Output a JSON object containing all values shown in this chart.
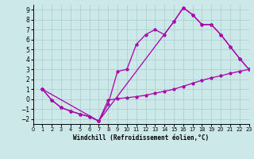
{
  "xlabel": "Windchill (Refroidissement éolien,°C)",
  "bg_color": "#cce8e8",
  "grid_color": "#aacccc",
  "line_color": "#aa00aa",
  "xlim": [
    0,
    23
  ],
  "ylim": [
    -2.5,
    9.5
  ],
  "xticks": [
    0,
    1,
    2,
    3,
    4,
    5,
    6,
    7,
    8,
    9,
    10,
    11,
    12,
    13,
    14,
    15,
    16,
    17,
    18,
    19,
    20,
    21,
    22,
    23
  ],
  "yticks": [
    -2,
    -1,
    0,
    1,
    2,
    3,
    4,
    5,
    6,
    7,
    8,
    9
  ],
  "line1_x": [
    1,
    2,
    3,
    4,
    5,
    6,
    7,
    8,
    9,
    10,
    11,
    12,
    13,
    14,
    15,
    16,
    17,
    18,
    19,
    20,
    21,
    22,
    23
  ],
  "line1_y": [
    1.0,
    -0.1,
    -0.85,
    -1.2,
    -1.5,
    -1.75,
    -2.2,
    -0.5,
    2.8,
    3.0,
    5.5,
    6.5,
    7.0,
    6.5,
    7.8,
    9.2,
    8.5,
    7.5,
    7.5,
    6.5,
    5.3,
    4.1,
    3.0
  ],
  "line2_x": [
    1,
    2,
    3,
    4,
    5,
    6,
    7,
    8,
    9,
    10,
    11,
    12,
    13,
    14,
    15,
    16,
    17,
    18,
    19,
    20,
    21,
    22,
    23
  ],
  "line2_y": [
    1.0,
    -0.1,
    -0.85,
    -1.2,
    -1.5,
    -1.75,
    -2.2,
    -0.1,
    0.05,
    0.15,
    0.25,
    0.4,
    0.6,
    0.8,
    1.0,
    1.3,
    1.6,
    1.9,
    2.15,
    2.35,
    2.6,
    2.8,
    3.0
  ],
  "line3_x": [
    1,
    7,
    15,
    16,
    17,
    18,
    19,
    20,
    21,
    22,
    23
  ],
  "line3_y": [
    1.0,
    -2.2,
    7.8,
    9.2,
    8.5,
    7.5,
    7.5,
    6.5,
    5.3,
    4.1,
    3.0
  ],
  "xlabel_fontsize": 5.5,
  "tick_fontsize_x": 4.8,
  "tick_fontsize_y": 5.5
}
